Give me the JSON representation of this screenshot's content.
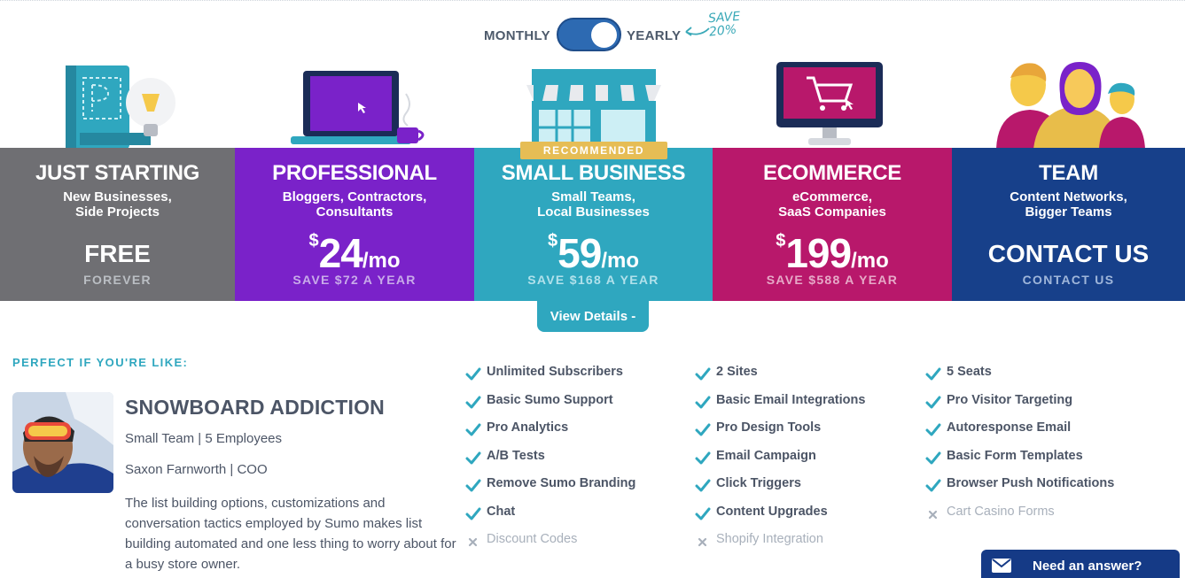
{
  "toggle": {
    "monthly_label": "MONTHLY",
    "yearly_label": "YEARLY",
    "save_line1": "SAVE",
    "save_line2": "20%",
    "state": "yearly"
  },
  "plans": [
    {
      "name": "JUST STARTING",
      "sub1": "New Businesses,",
      "sub2": "Side Projects",
      "big": "FREE",
      "save": "FOREVER",
      "color": "#6f6f73"
    },
    {
      "name": "PROFESSIONAL",
      "sub1": "Bloggers, Contractors,",
      "sub2": "Consultants",
      "currency": "$",
      "amount": "24",
      "per": "/mo",
      "save": "SAVE $72 A YEAR",
      "color": "#7a22c9"
    },
    {
      "name": "SMALL BUSINESS",
      "sub1": "Small Teams,",
      "sub2": "Local Businesses",
      "currency": "$",
      "amount": "59",
      "per": "/mo",
      "save": "SAVE $168 A YEAR",
      "badge": "RECOMMENDED",
      "color": "#2fa7bf"
    },
    {
      "name": "ECOMMERCE",
      "sub1": "eCommerce,",
      "sub2": "SaaS Companies",
      "currency": "$",
      "amount": "199",
      "per": "/mo",
      "save": "SAVE $588 A YEAR",
      "color": "#b8186b"
    },
    {
      "name": "TEAM",
      "sub1": "Content Networks,",
      "sub2": "Bigger Teams",
      "big": "CONTACT US",
      "save": "CONTACT US",
      "color": "#17408a"
    }
  ],
  "view_details_label": "View Details -",
  "testimonial": {
    "heading": "PERFECT IF YOU'RE LIKE:",
    "company": "SNOWBOARD ADDICTION",
    "size": "Small Team | 5 Employees",
    "person": "Saxon Farnworth | COO",
    "quote": "The list building options, customizations and conversation tactics employed by Sumo makes list building automated and one less thing to worry about for a busy store owner."
  },
  "features": {
    "col1": [
      {
        "label": "Unlimited Subscribers",
        "included": true
      },
      {
        "label": "Basic Sumo Support",
        "included": true
      },
      {
        "label": "Pro Analytics",
        "included": true
      },
      {
        "label": "A/B Tests",
        "included": true
      },
      {
        "label": "Remove Sumo Branding",
        "included": true
      },
      {
        "label": "Chat",
        "included": true
      },
      {
        "label": "Discount Codes",
        "included": false
      }
    ],
    "col2": [
      {
        "label": "2 Sites",
        "included": true
      },
      {
        "label": "Basic Email Integrations",
        "included": true
      },
      {
        "label": "Pro Design Tools",
        "included": true
      },
      {
        "label": "Email Campaign",
        "included": true
      },
      {
        "label": "Click Triggers",
        "included": true
      },
      {
        "label": "Content Upgrades",
        "included": true
      },
      {
        "label": "Shopify Integration",
        "included": false
      }
    ],
    "col3": [
      {
        "label": "5 Seats",
        "included": true
      },
      {
        "label": "Pro Visitor Targeting",
        "included": true
      },
      {
        "label": "Autoresponse Email",
        "included": true
      },
      {
        "label": "Basic Form Templates",
        "included": true
      },
      {
        "label": "Browser Push Notifications",
        "included": true
      },
      {
        "label": "Cart Casino Forms",
        "included": false
      }
    ]
  },
  "chat_widget": {
    "label": "Need an answer?"
  },
  "colors": {
    "check": "#2fa7bf",
    "cross": "#a8b0bb",
    "accent": "#2fa7bf"
  }
}
